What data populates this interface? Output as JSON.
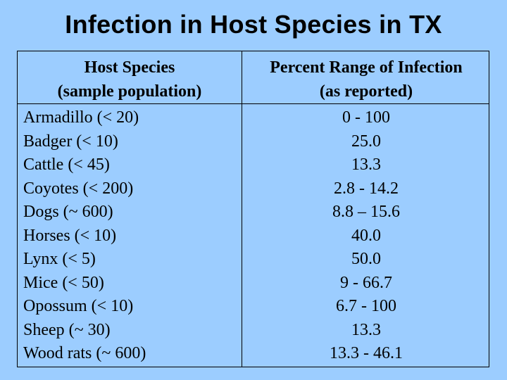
{
  "title": "Infection in Host Species in TX",
  "table": {
    "header_left": [
      "Host Species",
      "(sample population)"
    ],
    "header_right": [
      "Percent Range of Infection",
      "(as reported)"
    ],
    "rows": [
      {
        "species": "Armadillo (< 20)",
        "range": "0 - 100"
      },
      {
        "species": "Badger (< 10)",
        "range": "25.0"
      },
      {
        "species": "Cattle (< 45)",
        "range": "13.3"
      },
      {
        "species": "Coyotes (< 200)",
        "range": "2.8 - 14.2"
      },
      {
        "species": "Dogs (~ 600)",
        "range": "8.8 – 15.6"
      },
      {
        "species": "Horses (< 10)",
        "range": "40.0"
      },
      {
        "species": "Lynx (< 5)",
        "range": "50.0"
      },
      {
        "species": "Mice (< 50)",
        "range": "9 - 66.7"
      },
      {
        "species": "Opossum (< 10)",
        "range": "6.7  - 100"
      },
      {
        "species": "Sheep (~ 30)",
        "range": "13.3"
      },
      {
        "species": "Wood rats (~ 600)",
        "range": "13.3 - 46.1"
      }
    ]
  },
  "colors": {
    "background": "#9ccdff",
    "text": "#000000",
    "border": "#000000"
  }
}
